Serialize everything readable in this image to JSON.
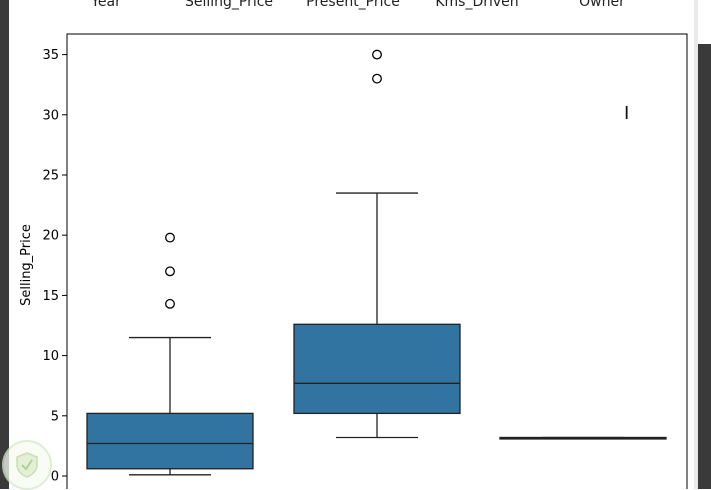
{
  "column_headers": [
    "Year",
    "Selling_Price",
    "Present_Price",
    "Kms_Driven",
    "Owner"
  ],
  "colors": {
    "box_fill": "#3274a1",
    "frame": "#000000",
    "left_bar": "#3a3a3a"
  },
  "cursor_icon": "text-cursor-icon",
  "watermark_icon": "shield-check-icon",
  "chart_data": {
    "type": "box",
    "ylabel": "Selling_Price",
    "ylim": [
      0,
      36.5
    ],
    "yticks": [
      0,
      5,
      10,
      15,
      20,
      25,
      30,
      35
    ],
    "ytick_labels": [
      "0",
      "5",
      "10",
      "15",
      "20",
      "25",
      "30",
      "35"
    ],
    "grid": false,
    "boxes": [
      {
        "whisker_low": 0.1,
        "q1": 0.6,
        "median": 2.7,
        "q3": 5.2,
        "whisker_high": 11.5,
        "outliers": [
          14.3,
          17.0,
          19.8
        ]
      },
      {
        "whisker_low": 3.2,
        "q1": 5.2,
        "median": 7.7,
        "q3": 12.6,
        "whisker_high": 23.5,
        "outliers": [
          33.0,
          35.0
        ]
      },
      {
        "whisker_low": 3.1,
        "q1": 3.1,
        "median": 3.15,
        "q3": 3.2,
        "whisker_high": 3.2,
        "outliers": []
      }
    ]
  }
}
